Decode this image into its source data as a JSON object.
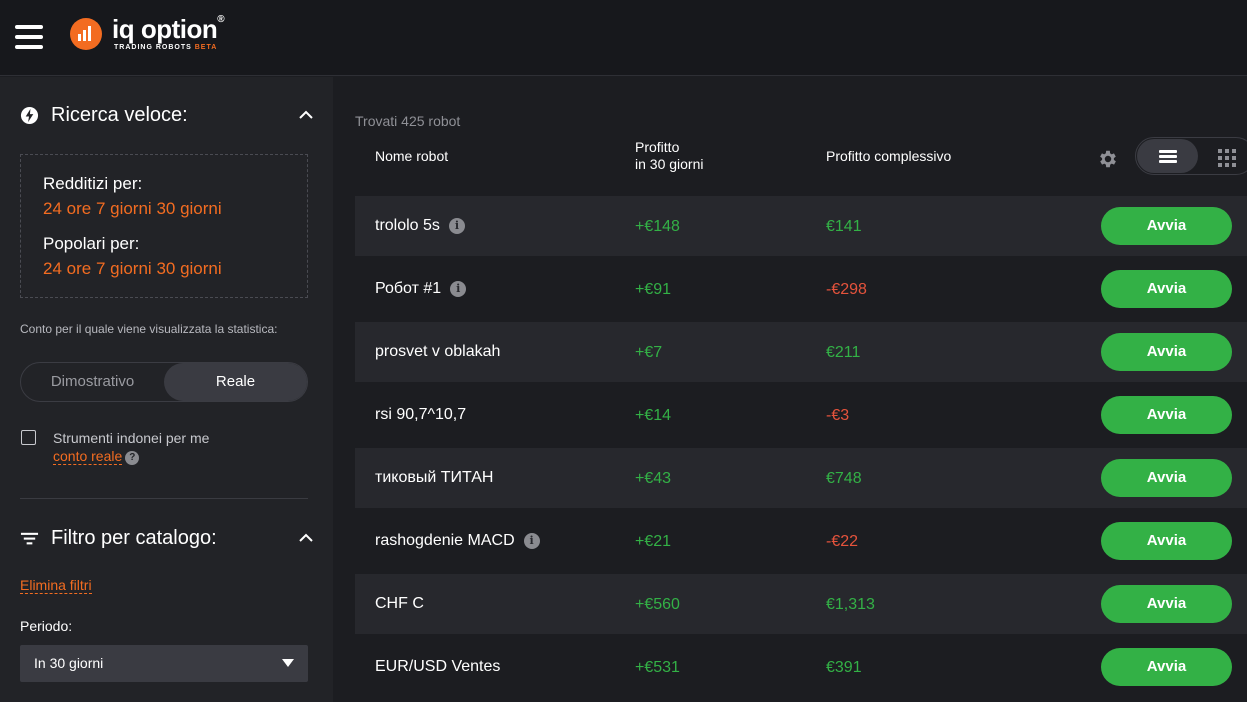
{
  "header": {
    "logo_text": "iq option",
    "logo_reg": "®",
    "logo_sub": "TRADING ROBOTS",
    "logo_beta": "BETA",
    "menu_icon": "hamburger-icon"
  },
  "sidebar": {
    "quick_search": {
      "title": "Ricerca veloce:",
      "icon": "bolt-circle-icon",
      "profitable_label": "Redditizi per:",
      "popular_label": "Popolari per:",
      "periods": [
        "24 ore",
        "7 giorni",
        "30 giorni"
      ]
    },
    "account_label": "Conto per il quale viene visualizzata la statistica:",
    "account_toggle": {
      "left": "Dimostrativo",
      "right": "Reale",
      "selected": "Reale"
    },
    "instruments_checkbox": {
      "checked": false,
      "text": "Strumenti indonei per me",
      "link": "conto reale",
      "help": "?"
    },
    "catalog_filter": {
      "title": "Filtro per catalogo:",
      "icon": "filter-icon",
      "clear_label": "Elimina filtri",
      "period_label": "Periodo:",
      "period_value": "In 30 giorni"
    }
  },
  "main": {
    "found_text": "Trovati 425 robot",
    "columns": {
      "name": "Nome robot",
      "profit30_line1": "Profitto",
      "profit30_line2": "in 30 giorni",
      "total": "Profitto complessivo"
    },
    "start_label": "Avvia",
    "colors": {
      "positive": "#33b146",
      "negative": "#e5533c",
      "accent": "#f36c21",
      "button": "#33b146"
    },
    "robots": [
      {
        "name": "trololo 5s",
        "info": true,
        "profit30": "+€148",
        "total": "€141",
        "total_negative": false
      },
      {
        "name": "Робот #1",
        "info": true,
        "profit30": "+€91",
        "total": "-€298",
        "total_negative": true
      },
      {
        "name": "prosvet v oblakah",
        "info": false,
        "profit30": "+€7",
        "total": "€211",
        "total_negative": false
      },
      {
        "name": "rsi 90,7^10,7",
        "info": false,
        "profit30": "+€14",
        "total": "-€3",
        "total_negative": true
      },
      {
        "name": "тиковый ТИТАН",
        "info": false,
        "profit30": "+€43",
        "total": "€748",
        "total_negative": false
      },
      {
        "name": "rashogdenie MACD",
        "info": true,
        "profit30": "+€21",
        "total": "-€22",
        "total_negative": true
      },
      {
        "name": "CHF C",
        "info": false,
        "profit30": "+€560",
        "total": "€1,313",
        "total_negative": false
      },
      {
        "name": "EUR/USD Ventes",
        "info": false,
        "profit30": "+€531",
        "total": "€391",
        "total_negative": false
      }
    ]
  }
}
